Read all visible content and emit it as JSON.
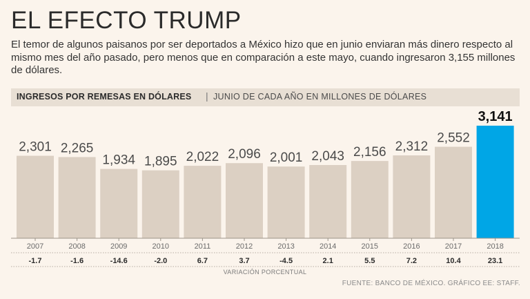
{
  "title": "EL EFECTO TRUMP",
  "subtitle": "El temor de algunos paisanos por ser deportados a México hizo que en junio enviaran más dinero respecto al mismo mes del año pasado, pero menos que en comparación a este mayo, cuando ingresaron 3,155 millones de dólares.",
  "header": {
    "main": "INGRESOS POR REMESAS EN DÓLARES",
    "separator": "|",
    "sub": "JUNIO DE CADA AÑO EN MILLONES DE DÓLARES"
  },
  "footer": "FUENTE: BANCO DE MÉXICO. GRÁFICO EE: STAFF.",
  "colors": {
    "bar": "#dcd0c3",
    "highlight": "#00a6e6",
    "background": "#fbf4ec"
  },
  "chart_data": {
    "type": "bar",
    "title": "INGRESOS POR REMESAS EN DÓLARES",
    "subtitle": "JUNIO DE CADA AÑO EN MILLONES DE DÓLARES",
    "categories": [
      "2007",
      "2008",
      "2009",
      "2010",
      "2011",
      "2012",
      "2013",
      "2014",
      "2015",
      "2016",
      "2017",
      "2018"
    ],
    "values": [
      2301,
      2265,
      1934,
      1895,
      2022,
      2096,
      2001,
      2043,
      2156,
      2312,
      2552,
      3141
    ],
    "value_labels": [
      "2,301",
      "2,265",
      "1,934",
      "1,895",
      "2,022",
      "2,096",
      "2,001",
      "2,043",
      "2,156",
      "2,312",
      "2,552",
      "3,141"
    ],
    "variation": [
      "-1.7",
      "-1.6",
      "-14.6",
      "-2.0",
      "6.7",
      "3.7",
      "-4.5",
      "2.1",
      "5.5",
      "7.2",
      "10.4",
      "23.1"
    ],
    "variation_label": "VARIACIÓN PORCENTUAL",
    "highlight_index": 11,
    "ylim": [
      0,
      3141
    ]
  }
}
